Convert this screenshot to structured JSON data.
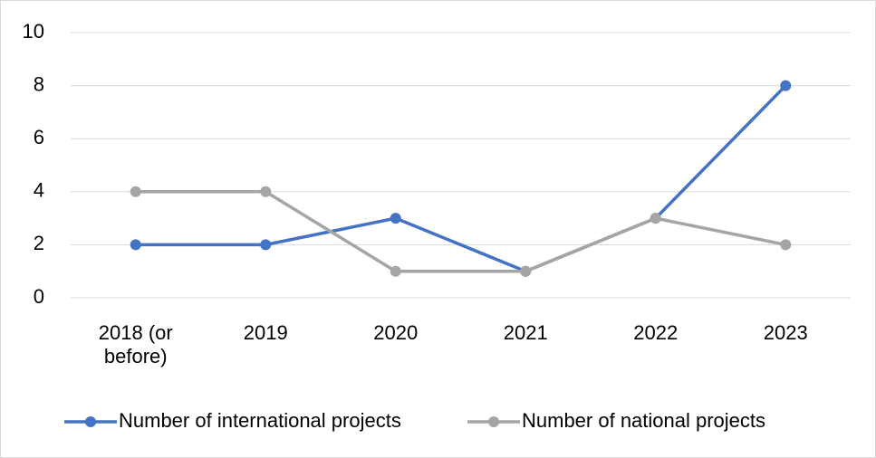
{
  "chart_data": {
    "type": "line",
    "categories": [
      "2018 (or before)",
      "2019",
      "2020",
      "2021",
      "2022",
      "2023"
    ],
    "series": [
      {
        "name": "Number of international projects",
        "color": "#4472c4",
        "values": [
          2,
          2,
          3,
          1,
          3,
          8
        ]
      },
      {
        "name": "Number of national projects",
        "color": "#a5a5a5",
        "values": [
          4,
          4,
          1,
          1,
          3,
          2
        ]
      }
    ],
    "ylim": [
      0,
      10
    ],
    "yticks": [
      0,
      2,
      4,
      6,
      8,
      10
    ],
    "grid": true,
    "legend": "bottom"
  }
}
